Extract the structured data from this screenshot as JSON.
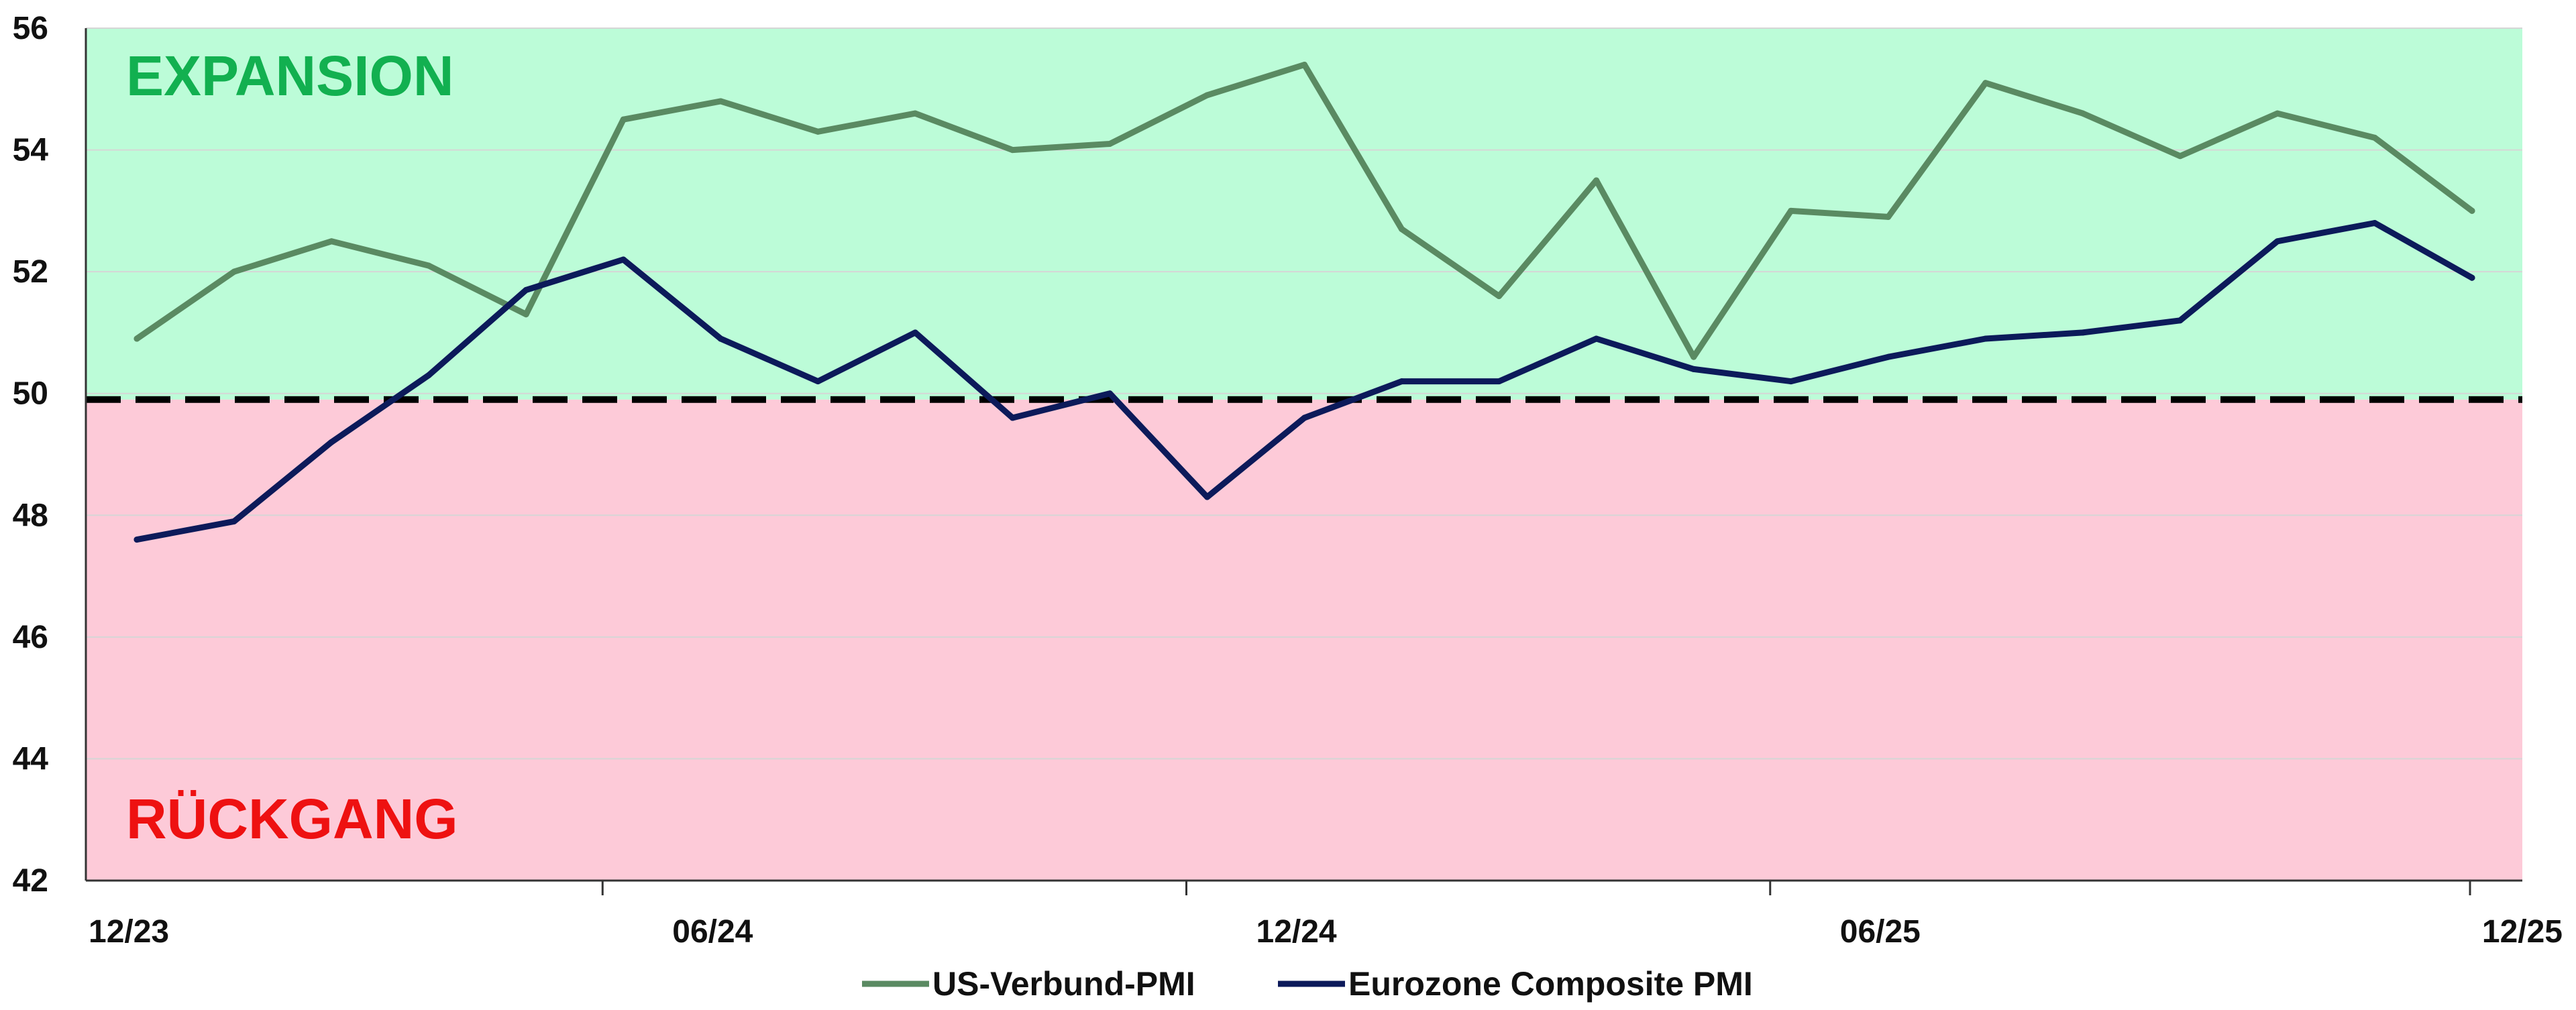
{
  "chart_data": {
    "type": "line",
    "title": "",
    "xlabel": "",
    "ylabel": "",
    "ylim": [
      42,
      56
    ],
    "yticks": [
      42,
      44,
      46,
      48,
      50,
      52,
      54,
      56
    ],
    "x": [
      "12/23",
      "01/24",
      "02/24",
      "03/24",
      "04/24",
      "05/24",
      "06/24",
      "07/24",
      "08/24",
      "09/24",
      "10/24",
      "11/24",
      "12/24",
      "01/25",
      "02/25",
      "03/25",
      "04/25",
      "05/25",
      "06/25",
      "07/25",
      "08/25",
      "09/25",
      "10/25",
      "11/25",
      "12/25"
    ],
    "xtick_labels": [
      "12/23",
      "06/24",
      "12/24",
      "06/25",
      "12/25"
    ],
    "series": [
      {
        "name": "US-Verbund-PMI",
        "color": "#5a8a62",
        "values": [
          50.9,
          52.0,
          52.5,
          52.1,
          51.3,
          54.5,
          54.8,
          54.3,
          54.6,
          54.0,
          54.1,
          54.9,
          55.4,
          52.7,
          51.6,
          53.5,
          50.6,
          53.0,
          52.9,
          55.1,
          54.6,
          53.9,
          54.6,
          54.2,
          53.0
        ]
      },
      {
        "name": "Eurozone Composite PMI",
        "color": "#0c1a5a",
        "values": [
          47.6,
          47.9,
          49.2,
          50.3,
          51.7,
          52.2,
          50.9,
          50.2,
          51.0,
          49.6,
          50.0,
          48.3,
          49.6,
          50.2,
          50.2,
          50.9,
          50.4,
          50.2,
          50.6,
          50.9,
          51.0,
          51.2,
          52.5,
          52.8,
          51.9
        ]
      }
    ],
    "threshold": 49.9,
    "zones": {
      "expansion": {
        "label": "EXPANSION",
        "color": "#bcfcd8",
        "text_color": "#12b050"
      },
      "contraction": {
        "label": "RÜCKGANG",
        "color": "#fdcad8",
        "text_color": "#ee1111"
      }
    },
    "grid": true,
    "legend_position": "bottom-center"
  }
}
